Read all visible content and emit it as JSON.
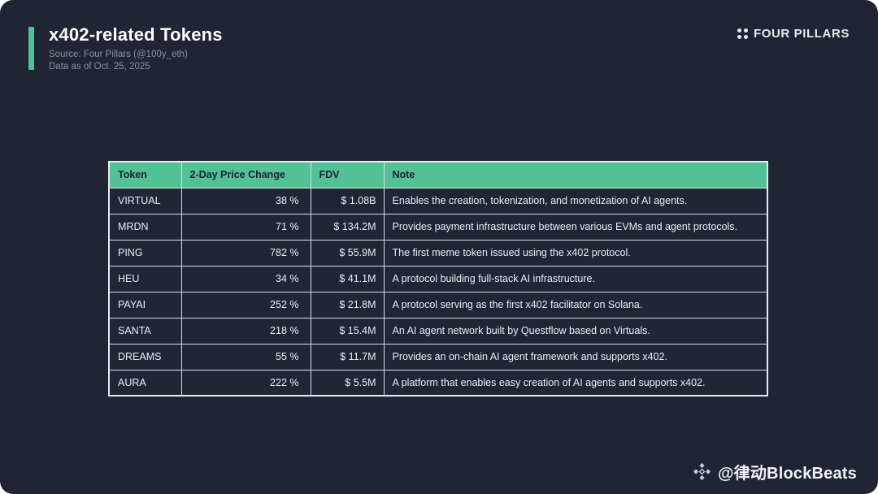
{
  "header": {
    "title": "x402-related Tokens",
    "source_line": "Source: Four Pillars (@100y_eth)",
    "date_line": "Data as of Oct. 25, 2025"
  },
  "brand": {
    "name": "FOUR PILLARS",
    "icon": "four-dots-icon"
  },
  "watermark": {
    "handle": "@律动BlockBeats",
    "icon": "blockbeats-diamond-icon"
  },
  "colors": {
    "card_bg": "#1F2532",
    "page_bg": "#FFFFFF",
    "accent_green": "#52C196",
    "table_border": "#D9DDE5",
    "muted_text": "#8B929C",
    "header_text": "#1C2230",
    "cell_text": "#ECEEF2"
  },
  "chart_data": {
    "type": "table",
    "title": "x402-related Tokens",
    "columns": [
      "Token",
      "2-Day Price Change",
      "FDV",
      "Note"
    ],
    "rows": [
      [
        "VIRTUAL",
        "38 %",
        "$ 1.08B",
        "Enables the creation, tokenization, and monetization of AI agents."
      ],
      [
        "MRDN",
        "71 %",
        "$ 134.2M",
        "Provides payment infrastructure between various EVMs and agent protocols."
      ],
      [
        "PING",
        "782 %",
        "$ 55.9M",
        "The first meme token issued using the x402 protocol."
      ],
      [
        "HEU",
        "34 %",
        "$ 41.1M",
        "A protocol building full-stack AI infrastructure."
      ],
      [
        "PAYAI",
        "252 %",
        "$ 21.8M",
        "A protocol serving as the first x402 facilitator on Solana."
      ],
      [
        "SANTA",
        "218 %",
        "$ 15.4M",
        "An AI agent network built by Questflow based on Virtuals."
      ],
      [
        "DREAMS",
        "55 %",
        "$ 11.7M",
        "Provides an on-chain AI agent framework and supports x402."
      ],
      [
        "AURA",
        "222 %",
        "$ 5.5M",
        "A platform that enables easy creation of AI agents and supports x402."
      ]
    ]
  }
}
